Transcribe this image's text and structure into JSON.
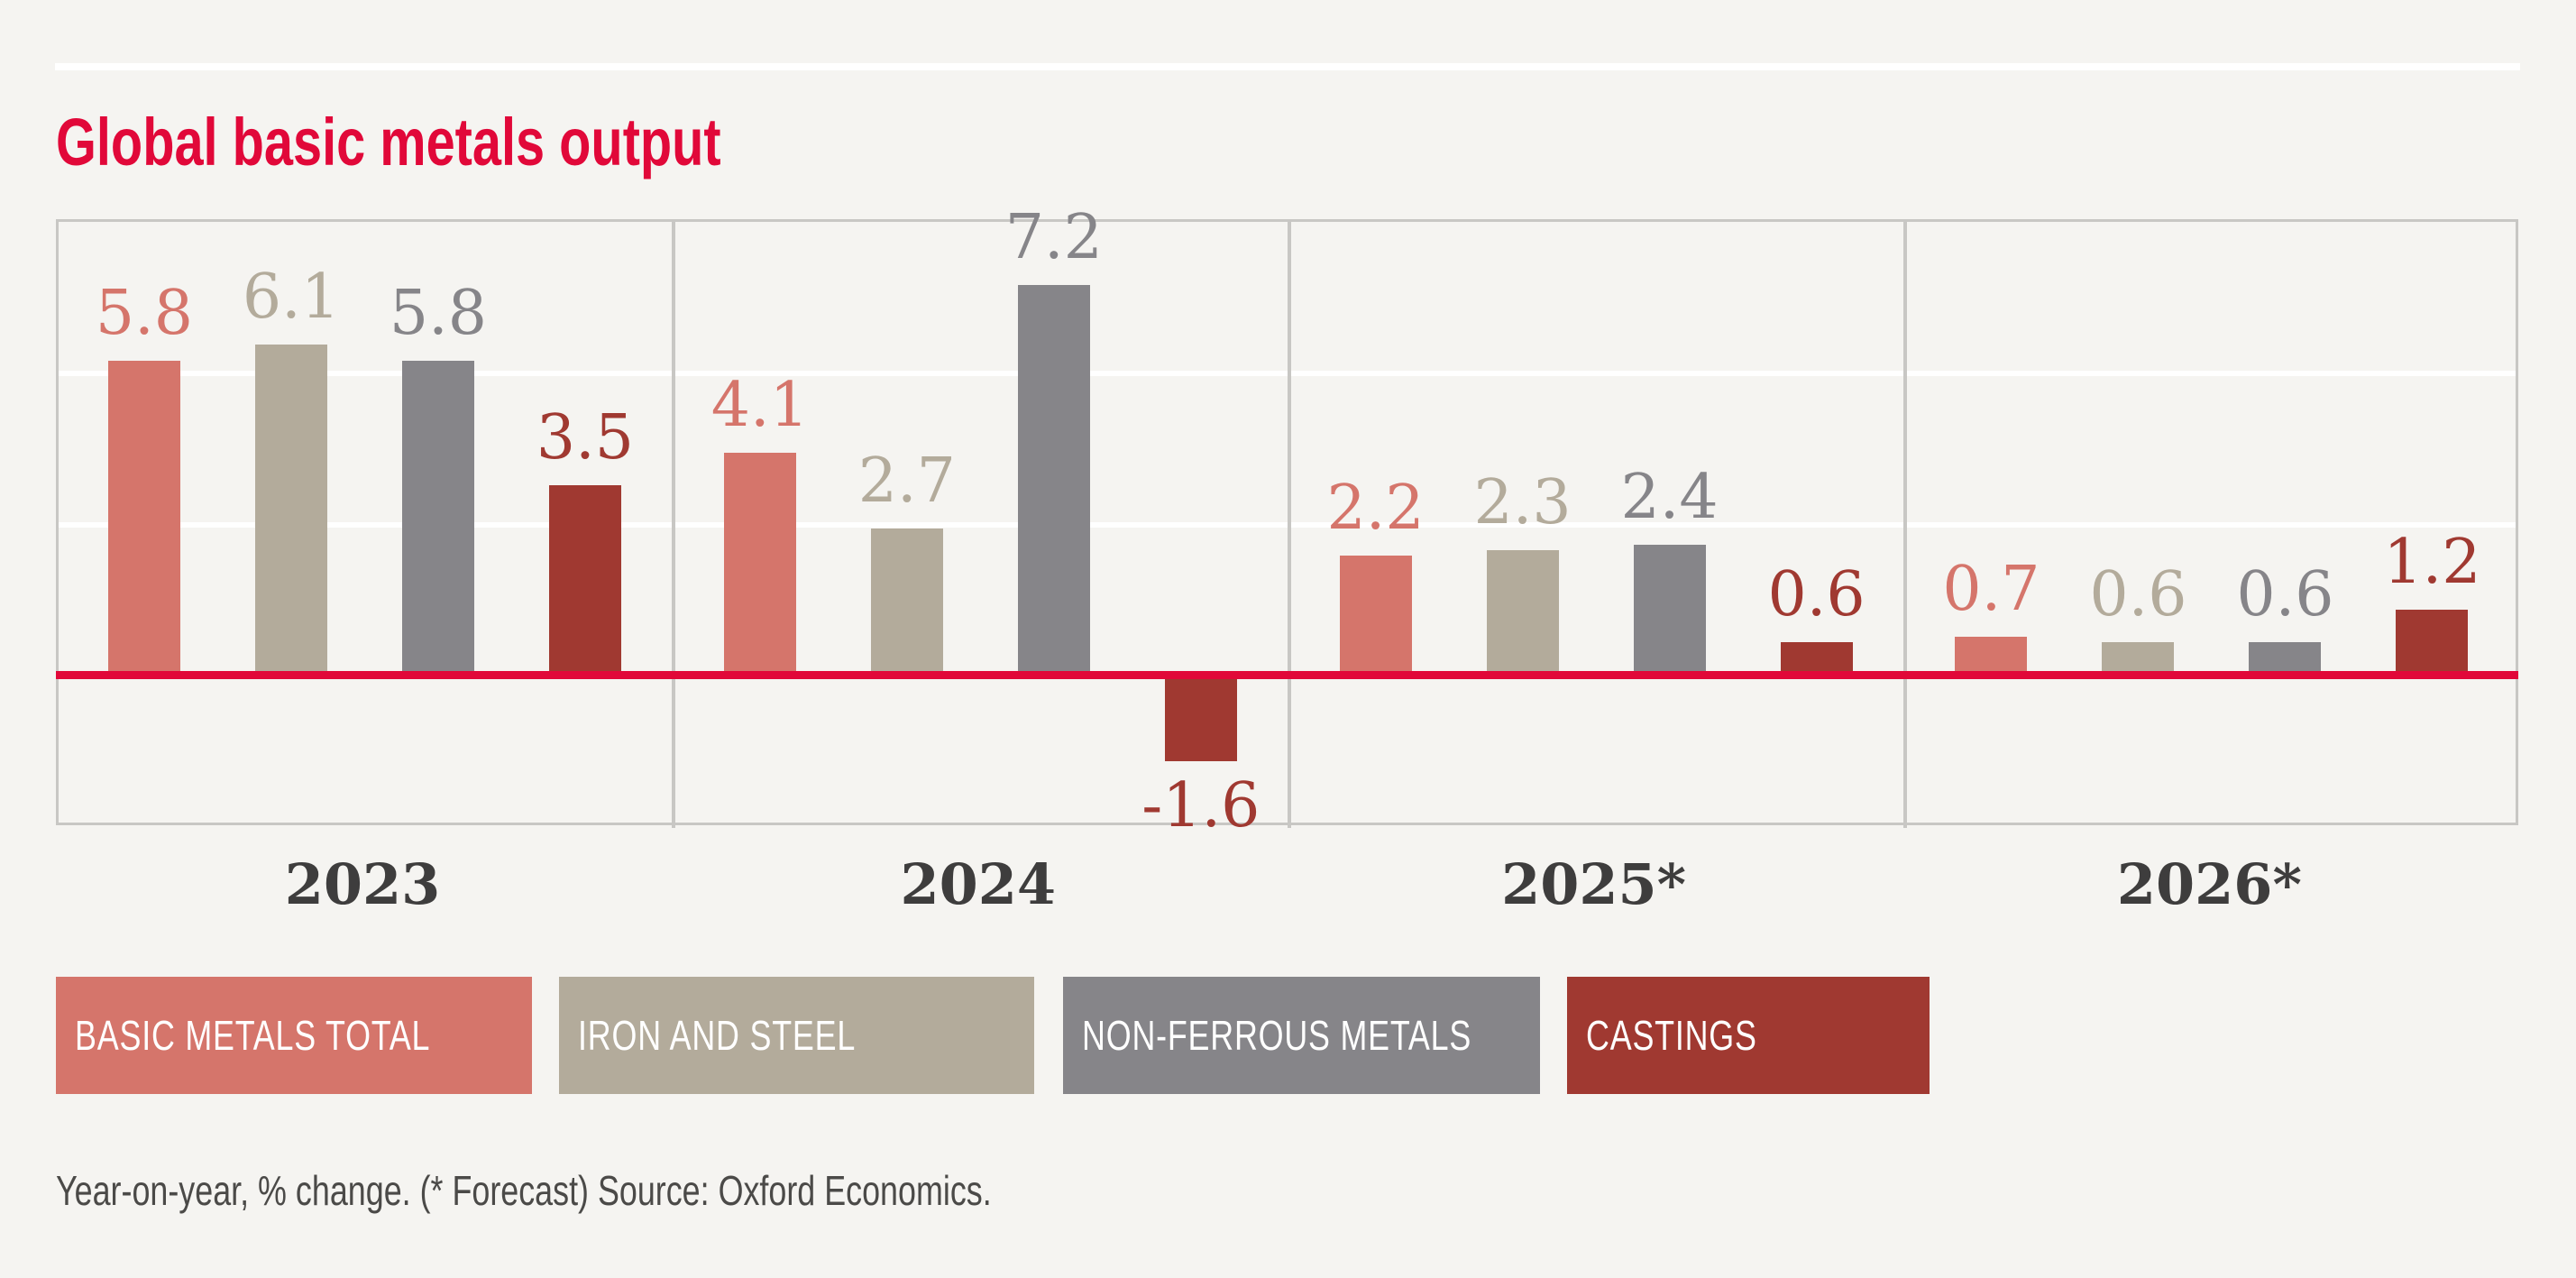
{
  "title": "Global basic metals output",
  "chart_data": {
    "type": "bar",
    "categories": [
      "2023",
      "2024",
      "2025*",
      "2026*"
    ],
    "series": [
      {
        "name": "BASIC METALS TOTAL",
        "color": "#d5756b",
        "values": [
          5.8,
          4.1,
          2.2,
          0.7
        ]
      },
      {
        "name": "IRON AND STEEL",
        "color": "#b3ab9b",
        "values": [
          6.1,
          2.7,
          2.3,
          0.6
        ]
      },
      {
        "name": "NON-FERROUS METALS",
        "color": "#868589",
        "values": [
          5.8,
          7.2,
          2.4,
          0.6
        ]
      },
      {
        "name": "CASTINGS",
        "color": "#a03931",
        "values": [
          3.5,
          -1.6,
          0.6,
          1.2
        ]
      }
    ],
    "value_labels_shown": true,
    "axis_tick_labels_shown": false,
    "ylim": [
      -2.8,
      8.4
    ],
    "gridline_values": [
      2.8,
      5.6
    ],
    "zero_axis_color": "#e10839",
    "legend_position": "bottom",
    "grid": "on"
  },
  "footer": {
    "note": "Year-on-year, % change. (* Forecast) Source: Oxford Economics."
  },
  "colors": {
    "background": "#f5f4f1",
    "accent_red": "#e10839",
    "gridline_white": "#ffffff",
    "border_gray": "#c8c7c4",
    "year_label": "#3e3d3d",
    "footer_text": "#4b4a48"
  }
}
